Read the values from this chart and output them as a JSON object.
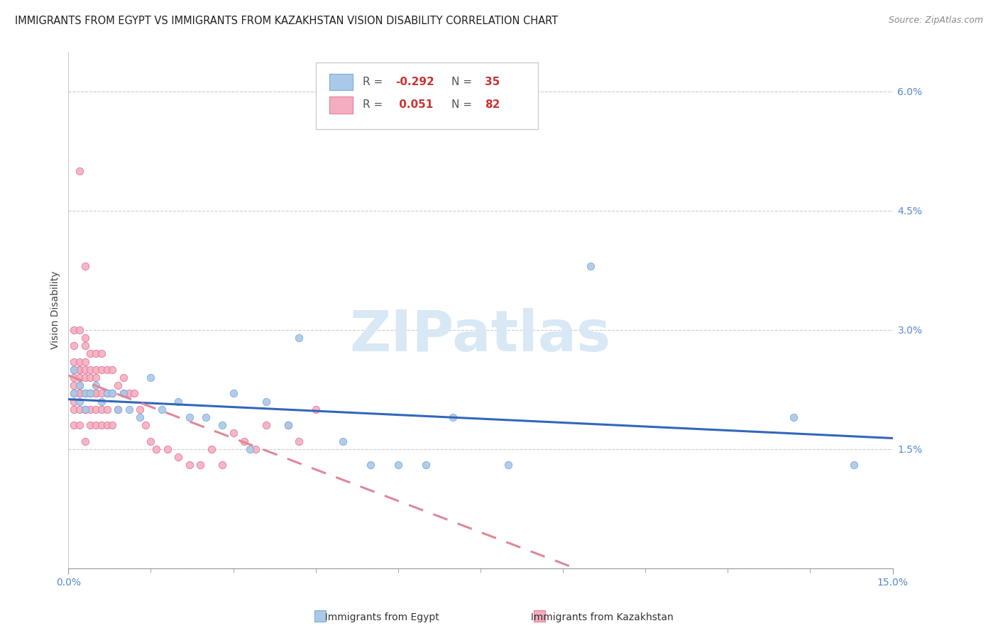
{
  "title": "IMMIGRANTS FROM EGYPT VS IMMIGRANTS FROM KAZAKHSTAN VISION DISABILITY CORRELATION CHART",
  "source": "Source: ZipAtlas.com",
  "ylabel": "Vision Disability",
  "xlim": [
    0.0,
    0.15
  ],
  "ylim": [
    0.0,
    0.065
  ],
  "xtick_labels_shown": [
    "0.0%",
    "15.0%"
  ],
  "xtick_vals_shown": [
    0.0,
    0.15
  ],
  "xtick_minor": [
    0.015,
    0.03,
    0.045,
    0.06,
    0.075,
    0.09,
    0.105,
    0.12,
    0.135
  ],
  "yticks_right": [
    0.0,
    0.015,
    0.03,
    0.045,
    0.06
  ],
  "yticklabels_right": [
    "",
    "1.5%",
    "3.0%",
    "4.5%",
    "6.0%"
  ],
  "grid_color": "#cccccc",
  "background_color": "#ffffff",
  "tick_color": "#5588cc",
  "egypt_color": "#aac8e8",
  "egypt_edge_color": "#7aadda",
  "egypt_line_color": "#3366bb",
  "kazakhstan_color": "#f5aec0",
  "kazakhstan_edge_color": "#e07a99",
  "kazakhstan_line_color": "#dd8899",
  "legend_R1": "-0.292",
  "legend_N1": "35",
  "legend_R2": "0.051",
  "legend_N2": "82",
  "legend_label1": "Immigrants from Egypt",
  "legend_label2": "Immigrants from Kazakhstan",
  "watermark": "ZIPatlas",
  "watermark_color": "#d8e8f5",
  "title_fontsize": 10.5,
  "tick_fontsize": 10,
  "legend_fontsize": 11,
  "marker_size": 55,
  "line_width": 2.2,
  "egypt_x": [
    0.001,
    0.001,
    0.002,
    0.002,
    0.003,
    0.003,
    0.004,
    0.005,
    0.006,
    0.007,
    0.008,
    0.009,
    0.01,
    0.011,
    0.013,
    0.015,
    0.017,
    0.02,
    0.022,
    0.025,
    0.028,
    0.03,
    0.033,
    0.036,
    0.04,
    0.042,
    0.05,
    0.055,
    0.06,
    0.065,
    0.07,
    0.08,
    0.095,
    0.132,
    0.143
  ],
  "egypt_y": [
    0.022,
    0.025,
    0.023,
    0.021,
    0.022,
    0.02,
    0.022,
    0.023,
    0.021,
    0.022,
    0.022,
    0.02,
    0.022,
    0.02,
    0.019,
    0.024,
    0.02,
    0.021,
    0.019,
    0.019,
    0.018,
    0.022,
    0.015,
    0.021,
    0.018,
    0.029,
    0.016,
    0.013,
    0.013,
    0.013,
    0.019,
    0.013,
    0.038,
    0.019,
    0.013
  ],
  "kazakhstan_x": [
    0.001,
    0.001,
    0.001,
    0.001,
    0.001,
    0.001,
    0.001,
    0.001,
    0.001,
    0.001,
    0.002,
    0.002,
    0.002,
    0.002,
    0.002,
    0.002,
    0.002,
    0.002,
    0.002,
    0.002,
    0.003,
    0.003,
    0.003,
    0.003,
    0.003,
    0.003,
    0.003,
    0.003,
    0.003,
    0.003,
    0.004,
    0.004,
    0.004,
    0.004,
    0.004,
    0.004,
    0.004,
    0.005,
    0.005,
    0.005,
    0.005,
    0.005,
    0.005,
    0.005,
    0.006,
    0.006,
    0.006,
    0.006,
    0.006,
    0.007,
    0.007,
    0.007,
    0.007,
    0.007,
    0.008,
    0.008,
    0.008,
    0.009,
    0.009,
    0.01,
    0.01,
    0.011,
    0.012,
    0.013,
    0.014,
    0.015,
    0.016,
    0.018,
    0.02,
    0.022,
    0.024,
    0.026,
    0.028,
    0.03,
    0.032,
    0.034,
    0.036,
    0.04,
    0.042,
    0.045,
    0.002,
    0.003
  ],
  "kazakhstan_y": [
    0.022,
    0.024,
    0.023,
    0.02,
    0.025,
    0.028,
    0.021,
    0.03,
    0.026,
    0.018,
    0.025,
    0.022,
    0.026,
    0.03,
    0.02,
    0.024,
    0.022,
    0.018,
    0.023,
    0.025,
    0.022,
    0.024,
    0.026,
    0.028,
    0.02,
    0.022,
    0.016,
    0.02,
    0.025,
    0.029,
    0.02,
    0.022,
    0.024,
    0.018,
    0.022,
    0.025,
    0.027,
    0.02,
    0.022,
    0.025,
    0.018,
    0.022,
    0.024,
    0.027,
    0.02,
    0.022,
    0.025,
    0.018,
    0.027,
    0.02,
    0.022,
    0.025,
    0.018,
    0.022,
    0.018,
    0.022,
    0.025,
    0.02,
    0.023,
    0.022,
    0.024,
    0.022,
    0.022,
    0.02,
    0.018,
    0.016,
    0.015,
    0.015,
    0.014,
    0.013,
    0.013,
    0.015,
    0.013,
    0.017,
    0.016,
    0.015,
    0.018,
    0.018,
    0.016,
    0.02,
    0.05,
    0.038
  ]
}
